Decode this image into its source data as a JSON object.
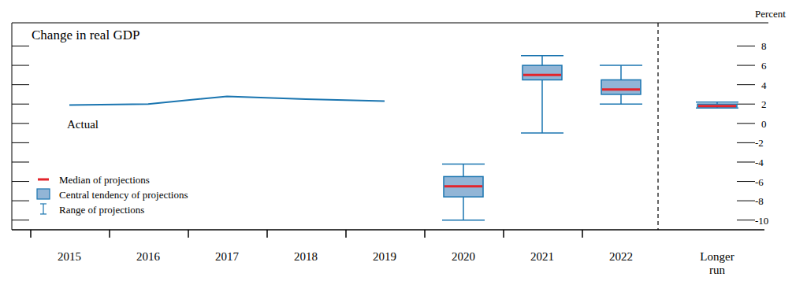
{
  "chart_data": {
    "type": "box",
    "title": "Change in real GDP",
    "y_axis_label": "Percent",
    "annotation": "Actual",
    "categories": [
      "2015",
      "2016",
      "2017",
      "2018",
      "2019",
      "2020",
      "2021",
      "2022",
      "Longer run"
    ],
    "ylim": [
      -11,
      10.4
    ],
    "yticks": [
      -10,
      -8,
      -6,
      -4,
      -2,
      0,
      2,
      4,
      6,
      8
    ],
    "legend": "lower-left",
    "series": [
      {
        "name": "Actual",
        "type": "line",
        "color": "#1a75b0",
        "values": [
          1.9,
          2.0,
          2.8,
          2.5,
          2.3,
          null,
          null,
          null,
          null
        ]
      },
      {
        "name": "Median of projections",
        "type": "median",
        "color": "#e3242b",
        "values": [
          null,
          null,
          null,
          null,
          null,
          -6.5,
          5.0,
          3.5,
          1.8
        ]
      },
      {
        "name": "Central tendency of projections",
        "type": "box",
        "color": "#92b5d6",
        "low": [
          null,
          null,
          null,
          null,
          null,
          -7.6,
          4.5,
          3.0,
          1.7
        ],
        "high": [
          null,
          null,
          null,
          null,
          null,
          -5.5,
          6.0,
          4.5,
          2.0
        ]
      },
      {
        "name": "Range of projections",
        "type": "range",
        "color": "#1a75b0",
        "low": [
          null,
          null,
          null,
          null,
          null,
          -10.0,
          -1.0,
          2.0,
          1.6
        ],
        "high": [
          null,
          null,
          null,
          null,
          null,
          -4.2,
          7.0,
          6.0,
          2.2
        ]
      }
    ]
  }
}
